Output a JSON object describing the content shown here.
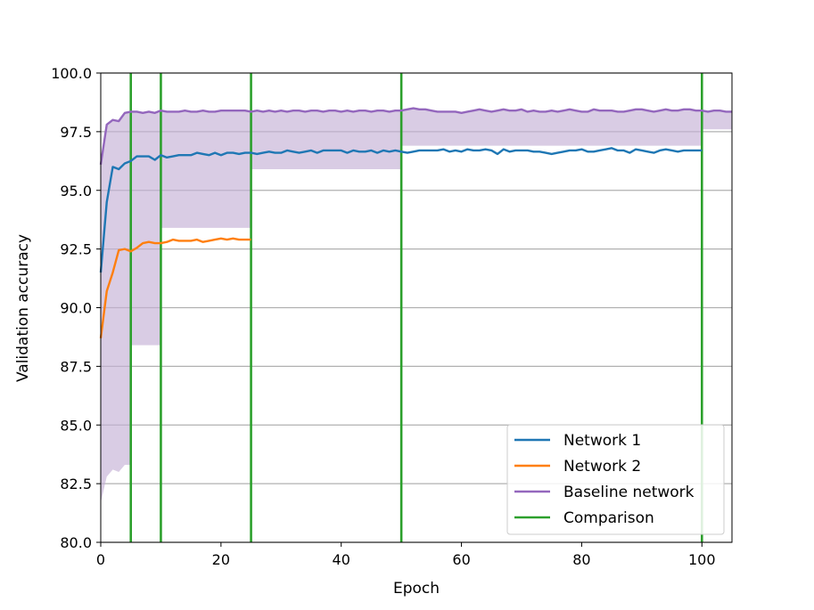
{
  "chart_data": {
    "type": "line",
    "title": "",
    "xlabel": "Epoch",
    "ylabel": "Validation accuracy",
    "xlim": [
      0,
      105
    ],
    "ylim": [
      80,
      100
    ],
    "xticks": [
      0,
      20,
      40,
      60,
      80,
      100
    ],
    "xtick_labels": [
      "0",
      "20",
      "40",
      "60",
      "80",
      "100"
    ],
    "yticks": [
      80,
      82.5,
      85,
      87.5,
      90,
      92.5,
      95,
      97.5,
      100
    ],
    "ytick_labels": [
      "80.0",
      "82.5",
      "85.0",
      "87.5",
      "90.0",
      "92.5",
      "95.0",
      "97.5",
      "100.0"
    ],
    "grid": "horizontal",
    "legend_position": "lower right",
    "series": [
      {
        "name": "Network 1",
        "color": "#1f77b4",
        "x": [
          0,
          1,
          2,
          3,
          4,
          5,
          6,
          7,
          8,
          9,
          10,
          11,
          12,
          13,
          14,
          15,
          16,
          17,
          18,
          19,
          20,
          21,
          22,
          23,
          24,
          25,
          26,
          27,
          28,
          29,
          30,
          31,
          32,
          33,
          34,
          35,
          36,
          37,
          38,
          39,
          40,
          41,
          42,
          43,
          44,
          45,
          46,
          47,
          48,
          49,
          50,
          51,
          52,
          53,
          54,
          55,
          56,
          57,
          58,
          59,
          60,
          61,
          62,
          63,
          64,
          65,
          66,
          67,
          68,
          69,
          70,
          71,
          72,
          73,
          74,
          75,
          76,
          77,
          78,
          79,
          80,
          81,
          82,
          83,
          84,
          85,
          86,
          87,
          88,
          89,
          90,
          91,
          92,
          93,
          94,
          95,
          96,
          97,
          98,
          99,
          100
        ],
        "values": [
          91.5,
          94.5,
          96.0,
          95.9,
          96.15,
          96.25,
          96.45,
          96.45,
          96.45,
          96.3,
          96.5,
          96.4,
          96.45,
          96.5,
          96.5,
          96.5,
          96.6,
          96.55,
          96.5,
          96.6,
          96.5,
          96.6,
          96.6,
          96.55,
          96.6,
          96.6,
          96.55,
          96.6,
          96.65,
          96.6,
          96.6,
          96.7,
          96.65,
          96.6,
          96.65,
          96.7,
          96.6,
          96.7,
          96.7,
          96.7,
          96.7,
          96.6,
          96.7,
          96.65,
          96.65,
          96.7,
          96.6,
          96.7,
          96.65,
          96.7,
          96.65,
          96.6,
          96.65,
          96.7,
          96.7,
          96.7,
          96.7,
          96.75,
          96.65,
          96.7,
          96.65,
          96.75,
          96.7,
          96.7,
          96.75,
          96.7,
          96.55,
          96.75,
          96.65,
          96.7,
          96.7,
          96.7,
          96.65,
          96.65,
          96.6,
          96.55,
          96.6,
          96.65,
          96.7,
          96.7,
          96.75,
          96.65,
          96.65,
          96.7,
          96.75,
          96.8,
          96.7,
          96.7,
          96.6,
          96.75,
          96.7,
          96.65,
          96.6,
          96.7,
          96.75,
          96.7,
          96.65,
          96.7,
          96.7,
          96.7,
          96.7
        ]
      },
      {
        "name": "Network 2",
        "color": "#ff7f0e",
        "x": [
          0,
          1,
          2,
          3,
          4,
          5,
          6,
          7,
          8,
          9,
          10,
          11,
          12,
          13,
          14,
          15,
          16,
          17,
          18,
          19,
          20,
          21,
          22,
          23,
          24,
          25
        ],
        "values": [
          88.7,
          90.7,
          91.5,
          92.45,
          92.5,
          92.4,
          92.55,
          92.75,
          92.8,
          92.75,
          92.75,
          92.8,
          92.9,
          92.85,
          92.85,
          92.85,
          92.9,
          92.8,
          92.85,
          92.9,
          92.95,
          92.9,
          92.95,
          92.9,
          92.9,
          92.9
        ]
      },
      {
        "name": "Baseline network",
        "color": "#9467bd",
        "x": [
          0,
          1,
          2,
          3,
          4,
          5,
          6,
          7,
          8,
          9,
          10,
          11,
          12,
          13,
          14,
          15,
          16,
          17,
          18,
          19,
          20,
          21,
          22,
          23,
          24,
          25,
          26,
          27,
          28,
          29,
          30,
          31,
          32,
          33,
          34,
          35,
          36,
          37,
          38,
          39,
          40,
          41,
          42,
          43,
          44,
          45,
          46,
          47,
          48,
          49,
          50,
          51,
          52,
          53,
          54,
          55,
          56,
          57,
          58,
          59,
          60,
          61,
          62,
          63,
          64,
          65,
          66,
          67,
          68,
          69,
          70,
          71,
          72,
          73,
          74,
          75,
          76,
          77,
          78,
          79,
          80,
          81,
          82,
          83,
          84,
          85,
          86,
          87,
          88,
          89,
          90,
          91,
          92,
          93,
          94,
          95,
          96,
          97,
          98,
          99,
          100,
          101,
          102,
          103,
          104,
          105
        ],
        "values": [
          96.1,
          97.8,
          98.0,
          97.95,
          98.3,
          98.35,
          98.35,
          98.3,
          98.35,
          98.3,
          98.4,
          98.35,
          98.35,
          98.35,
          98.4,
          98.35,
          98.35,
          98.4,
          98.35,
          98.35,
          98.4,
          98.4,
          98.4,
          98.4,
          98.4,
          98.35,
          98.4,
          98.35,
          98.4,
          98.35,
          98.4,
          98.35,
          98.4,
          98.4,
          98.35,
          98.4,
          98.4,
          98.35,
          98.4,
          98.4,
          98.35,
          98.4,
          98.35,
          98.4,
          98.4,
          98.35,
          98.4,
          98.4,
          98.35,
          98.4,
          98.4,
          98.45,
          98.5,
          98.45,
          98.45,
          98.4,
          98.35,
          98.35,
          98.35,
          98.35,
          98.3,
          98.35,
          98.4,
          98.45,
          98.4,
          98.35,
          98.4,
          98.45,
          98.4,
          98.4,
          98.45,
          98.35,
          98.4,
          98.35,
          98.35,
          98.4,
          98.35,
          98.4,
          98.45,
          98.4,
          98.35,
          98.35,
          98.45,
          98.4,
          98.4,
          98.4,
          98.35,
          98.35,
          98.4,
          98.45,
          98.45,
          98.4,
          98.35,
          98.4,
          98.45,
          98.4,
          98.4,
          98.45,
          98.45,
          98.4,
          98.4,
          98.35,
          98.4,
          98.4,
          98.35,
          98.35
        ]
      }
    ],
    "baseline_band": {
      "color": "#c5b0d5",
      "x": [
        0,
        1,
        2,
        3,
        4,
        4.9,
        5,
        5.1,
        9.9,
        10,
        10.1,
        24.9,
        25,
        25.1,
        49.9,
        50,
        50.1,
        99.9,
        100,
        100.1,
        105
      ],
      "lower": [
        81.7,
        82.8,
        83.1,
        83.0,
        83.3,
        83.3,
        88.4,
        88.4,
        88.4,
        93.4,
        93.4,
        93.4,
        95.9,
        95.9,
        95.9,
        96.9,
        96.9,
        96.9,
        97.6,
        97.6,
        97.6
      ]
    },
    "comparison": {
      "name": "Comparison",
      "color": "#2ca02c",
      "epochs": [
        5,
        10,
        25,
        50,
        100
      ]
    },
    "legend": [
      "Network 1",
      "Network 2",
      "Baseline network",
      "Comparison"
    ]
  }
}
